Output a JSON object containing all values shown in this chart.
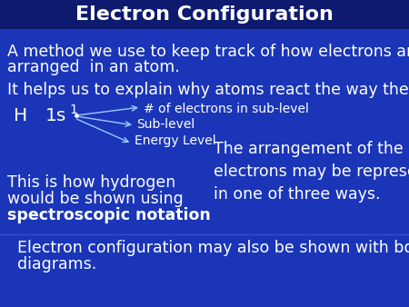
{
  "title": "Electron Configuration",
  "title_fontsize": 16,
  "text_color": "#ffffff",
  "bg_color": "#1a35b8",
  "bg_top": "#0d1a6e",
  "body_fontsize": 12.5,
  "small_fontsize": 10.0,
  "line1a": "A method we use to keep track of how electrons are",
  "line1b": "arranged  in an atom.",
  "line2": "It helps us to explain why atoms react the way they do.",
  "h_label": "H",
  "notation": "1s",
  "superscript": "1",
  "arrow_label1": "# of electrons in sub-level",
  "arrow_label2": "Sub-level",
  "arrow_label3": "Energy Level",
  "right_text": "The arrangement of the\nelectrons may be represented\nin one of three ways.",
  "left_bottom1a": "This is how hydrogen",
  "left_bottom1b": "would be shown using",
  "left_bottom2": "spectroscopic notation",
  "bottom_text1": "  Electron configuration may also be shown with box",
  "bottom_text2": "  diagrams.",
  "arrow_color": "#99ccff"
}
